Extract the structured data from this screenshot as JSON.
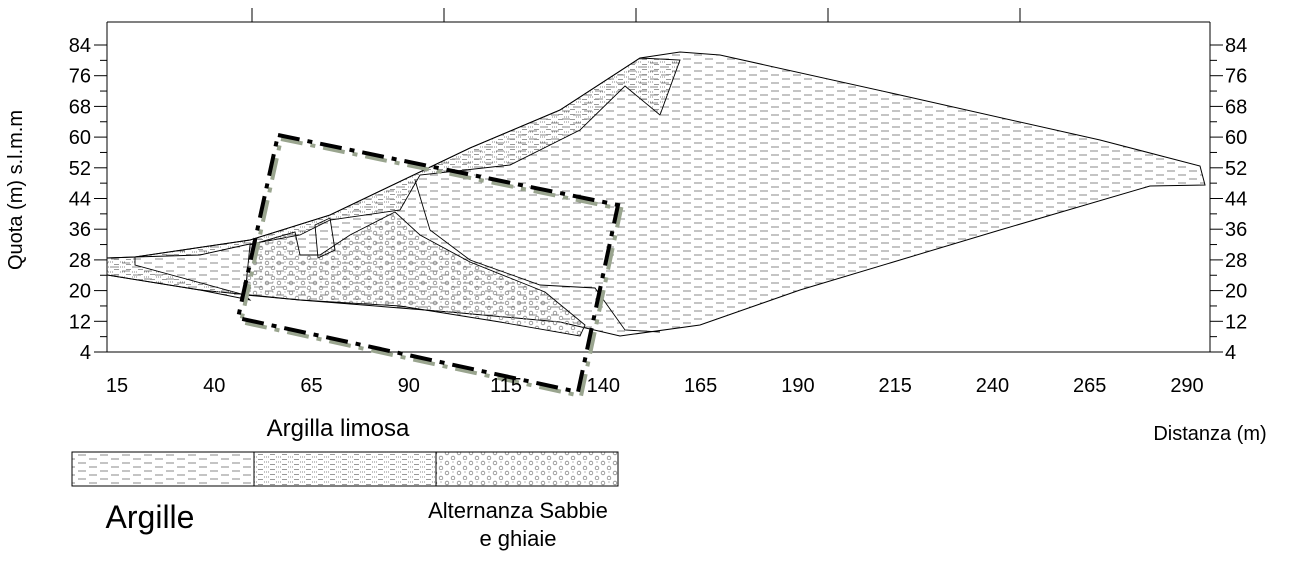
{
  "axes": {
    "y_label": "Quota (m) s.l.m.m",
    "x_label": "Distanza (m)",
    "yticks": [
      4,
      12,
      20,
      28,
      36,
      44,
      52,
      60,
      68,
      76,
      84
    ],
    "xticks": [
      15,
      40,
      65,
      90,
      115,
      140,
      165,
      190,
      215,
      240,
      265,
      290
    ]
  },
  "legend": {
    "top_label": "Argilla limosa",
    "items": [
      {
        "label": "Argille"
      },
      {
        "label": [
          "Alternanza Sabbie",
          "e ghiaie"
        ]
      }
    ]
  }
}
